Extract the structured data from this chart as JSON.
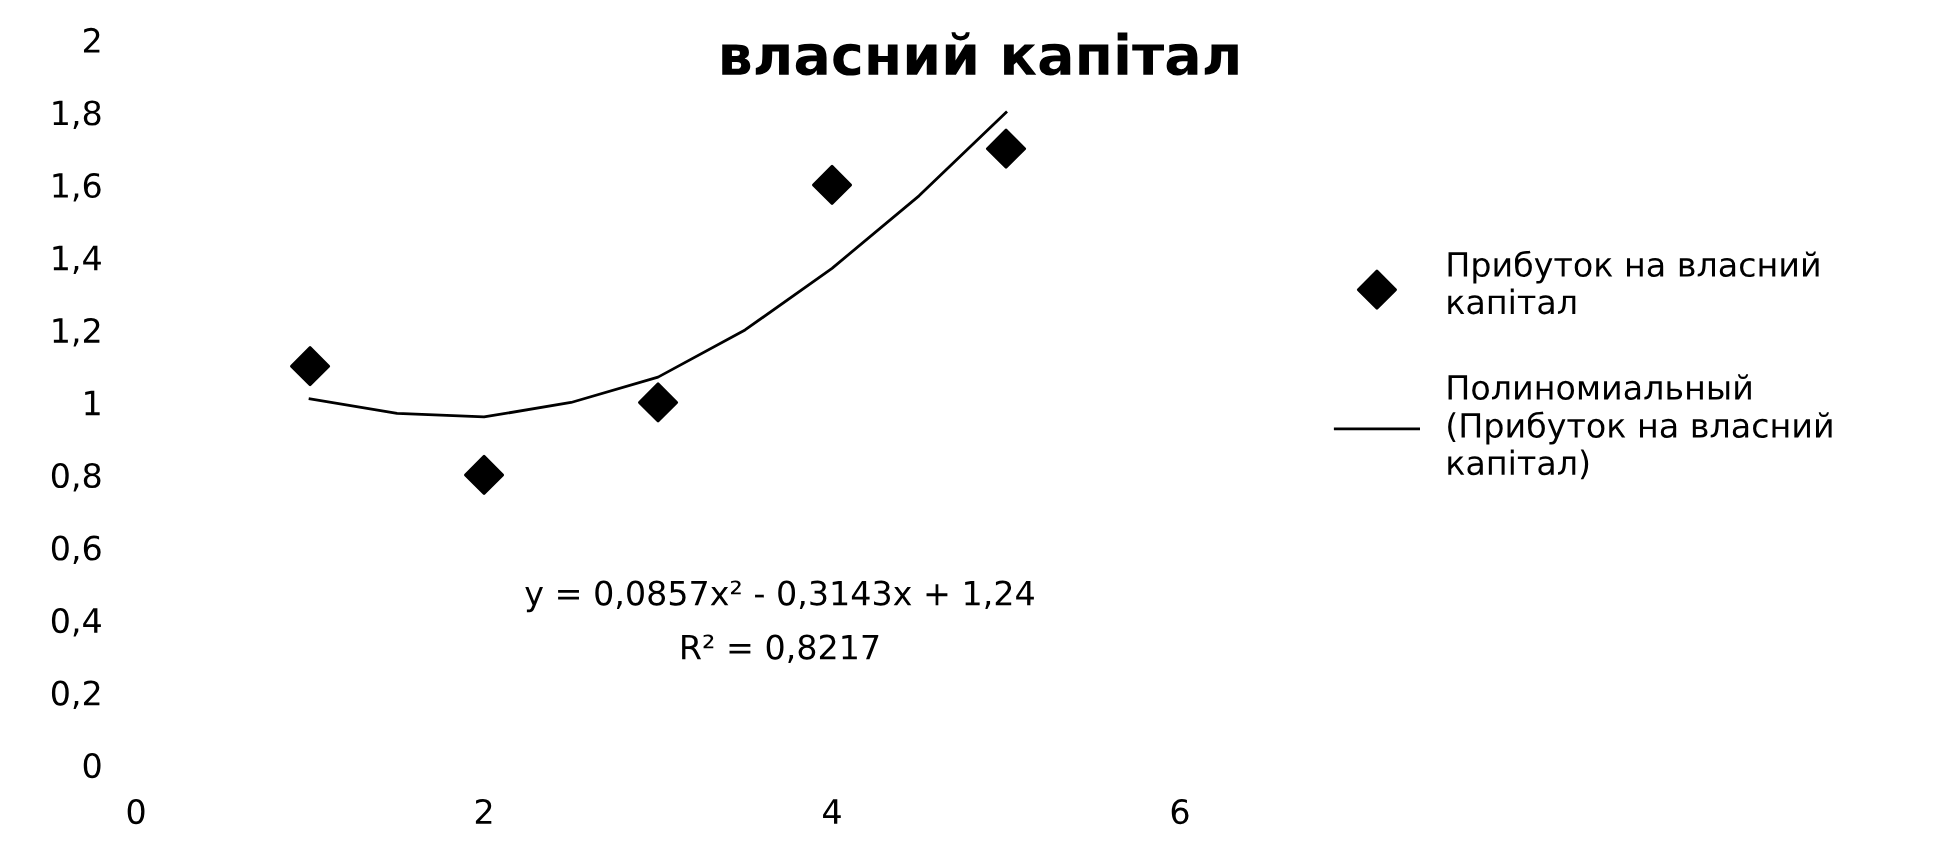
{
  "chart_data": {
    "type": "scatter",
    "title": "власний капітал",
    "series": [
      {
        "name": "Прибуток на власний\nкапітал",
        "color": "#000000",
        "marker": "diamond",
        "x": [
          1,
          2,
          3,
          4,
          5
        ],
        "values": [
          1.1,
          0.8,
          1.0,
          1.6,
          1.7
        ]
      },
      {
        "name": "Полиномиальный\n(Прибуток на власний\nкапітал)",
        "type": "line",
        "color": "#000000",
        "marker": "none",
        "line_style": "solid",
        "x": [
          1,
          1.5,
          2,
          2.5,
          3,
          3.5,
          4,
          4.5,
          5
        ],
        "values": [
          1.01,
          0.97,
          0.96,
          1.0,
          1.07,
          1.2,
          1.37,
          1.57,
          1.8
        ]
      }
    ],
    "annotations": [
      "y = 0,0857x² - 0,3143x + 1,24",
      "R² = 0,8217"
    ],
    "xlim": [
      0,
      6
    ],
    "xticks": [
      0,
      2,
      4,
      6
    ],
    "ylim": [
      0,
      2
    ],
    "yticks": [
      0,
      {
        "value": 0.2,
        "label": "0,2"
      },
      {
        "value": 0.4,
        "label": "0,4"
      },
      {
        "value": 0.6,
        "label": "0,6"
      },
      {
        "value": 0.8,
        "label": "0,8"
      },
      1,
      {
        "value": 1.2,
        "label": "1,2"
      },
      {
        "value": 1.4,
        "label": "1,4"
      },
      {
        "value": 1.6,
        "label": "1,6"
      },
      {
        "value": 1.8,
        "label": "1,8"
      },
      2
    ],
    "grid": false,
    "legend": "right"
  }
}
